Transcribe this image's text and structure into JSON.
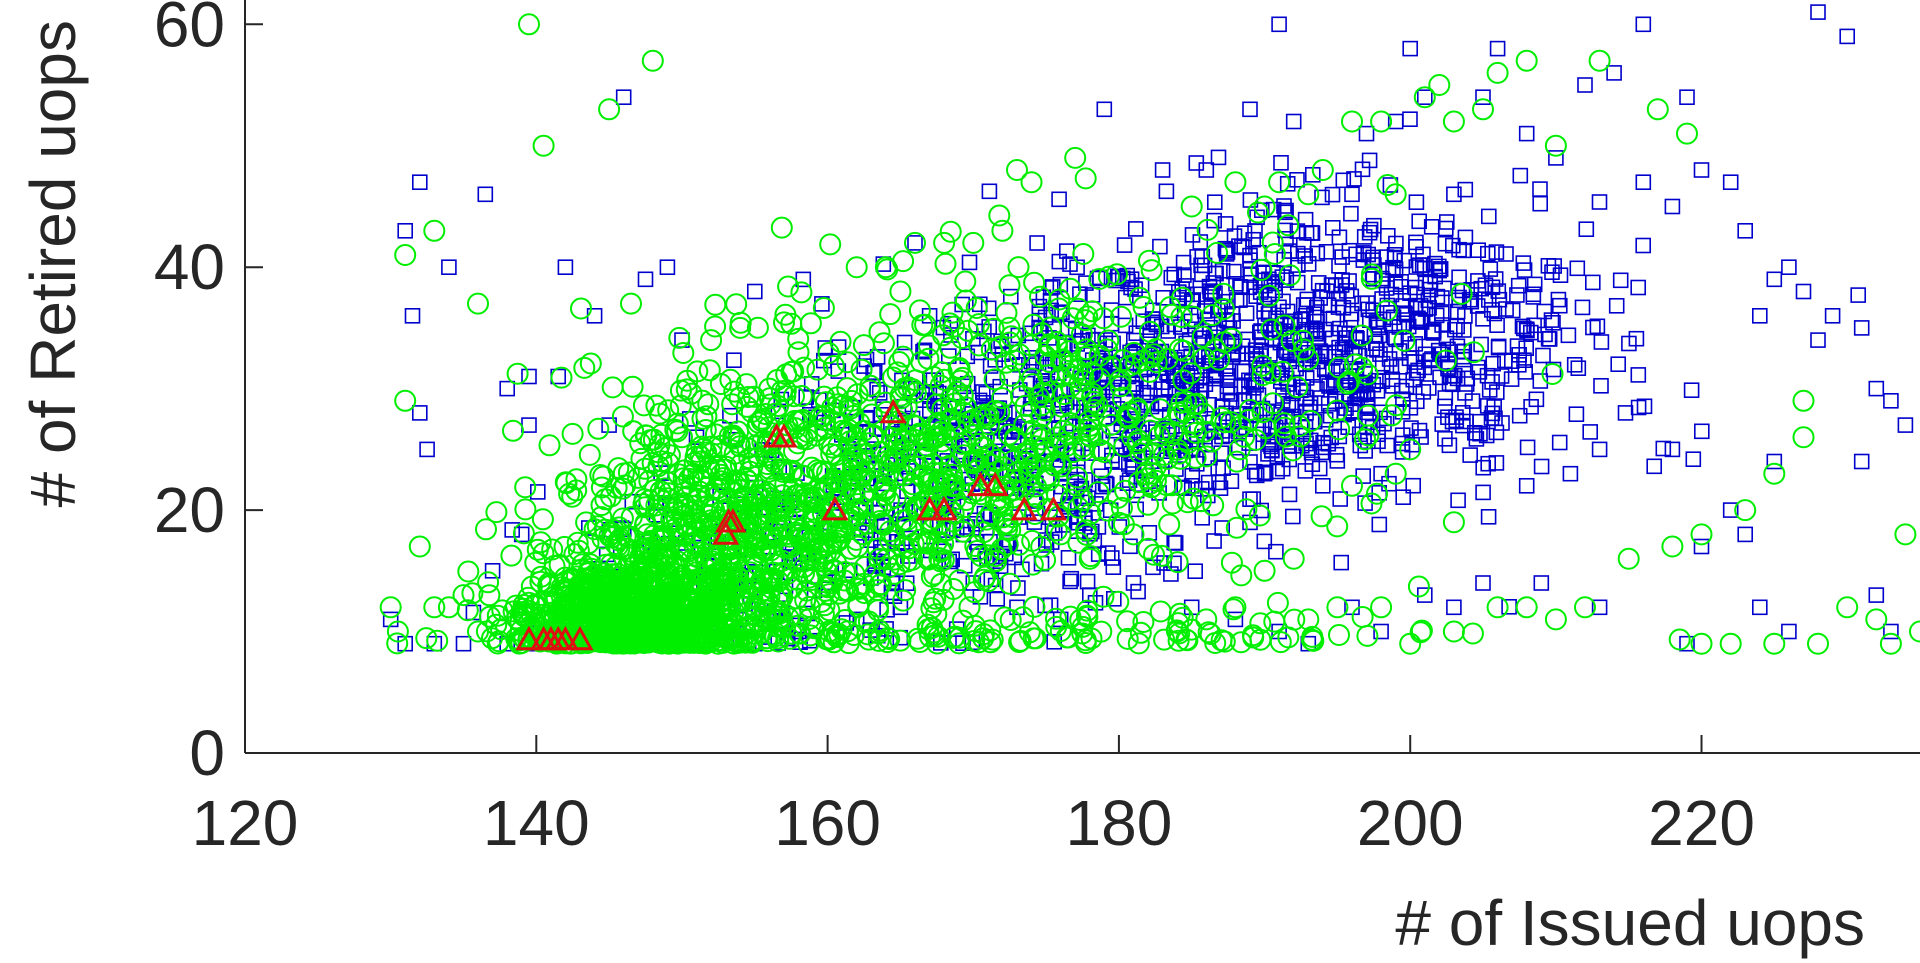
{
  "chart_data": {
    "type": "scatter",
    "title": "",
    "xlabel": "# of Issued uops",
    "ylabel": "# of Retired uops",
    "xlim": [
      120,
      235
    ],
    "ylim": [
      0,
      62
    ],
    "x_ticks": [
      120,
      140,
      160,
      180,
      200,
      220
    ],
    "y_ticks": [
      0,
      20,
      40,
      60
    ],
    "grid": false,
    "series": [
      {
        "marker": "square",
        "color": "#0000cc",
        "clusters": [
          {
            "cx": 196,
            "cy": 34,
            "sx": 9,
            "sy": 6,
            "n": 700
          },
          {
            "cx": 182,
            "cy": 30,
            "sx": 8,
            "sy": 6,
            "n": 450
          },
          {
            "cx": 168,
            "cy": 24,
            "sx": 7,
            "sy": 5,
            "n": 250
          },
          {
            "cx": 160,
            "cy": 15,
            "sx": 10,
            "sy": 4,
            "n": 150
          }
        ],
        "points": [
          [
            131,
            43
          ],
          [
            132,
            47
          ],
          [
            131.5,
            36
          ],
          [
            132,
            28
          ],
          [
            132.5,
            25
          ],
          [
            136.5,
            46
          ],
          [
            134,
            40
          ],
          [
            138,
            30
          ],
          [
            139.5,
            31
          ],
          [
            139.5,
            27
          ],
          [
            141.5,
            31
          ],
          [
            142,
            40
          ],
          [
            144,
            36
          ],
          [
            145,
            27
          ],
          [
            146,
            54
          ],
          [
            147.5,
            39
          ],
          [
            149,
            40
          ],
          [
            150,
            34
          ],
          [
            151,
            26
          ],
          [
            155,
            38
          ],
          [
            166,
            42
          ],
          [
            167,
            36
          ],
          [
            179,
            53
          ],
          [
            183,
            48
          ],
          [
            186,
            48
          ],
          [
            189,
            53
          ],
          [
            191,
            60
          ],
          [
            192,
            52
          ],
          [
            196,
            46
          ],
          [
            197,
            51
          ],
          [
            199,
            52
          ],
          [
            200,
            58
          ],
          [
            201,
            54
          ],
          [
            203,
            46
          ],
          [
            205,
            54
          ],
          [
            206,
            58
          ],
          [
            208,
            51
          ],
          [
            210,
            49
          ],
          [
            212,
            55
          ],
          [
            214,
            56
          ],
          [
            216,
            47
          ],
          [
            218,
            45
          ],
          [
            219,
            54
          ],
          [
            220,
            48
          ],
          [
            222,
            47
          ],
          [
            223,
            43
          ],
          [
            224,
            36
          ],
          [
            225,
            39
          ],
          [
            226,
            40
          ],
          [
            227,
            38
          ],
          [
            228,
            34
          ],
          [
            229,
            36
          ],
          [
            231,
            35
          ],
          [
            232,
            30
          ],
          [
            233,
            29
          ],
          [
            234,
            27
          ],
          [
            230,
            59
          ],
          [
            228,
            61
          ],
          [
            216,
            60
          ],
          [
            231,
            24
          ],
          [
            225,
            24
          ],
          [
            223,
            18
          ],
          [
            220,
            17
          ],
          [
            222,
            20
          ],
          [
            219,
            9
          ],
          [
            213,
            12
          ],
          [
            209,
            14
          ],
          [
            205,
            14
          ],
          [
            203,
            12
          ],
          [
            201,
            13
          ],
          [
            198,
            10
          ],
          [
            196,
            12
          ],
          [
            193,
            9
          ],
          [
            191,
            10
          ],
          [
            188,
            11
          ],
          [
            185,
            12
          ],
          [
            181,
            14
          ],
          [
            178,
            13
          ],
          [
            176,
            11
          ],
          [
            173,
            12
          ],
          [
            170,
            14
          ],
          [
            165,
            12
          ],
          [
            162,
            11
          ],
          [
            158,
            10
          ],
          [
            155,
            9
          ],
          [
            152,
            10
          ],
          [
            149,
            9
          ],
          [
            146,
            9
          ],
          [
            143,
            9
          ],
          [
            140,
            9
          ],
          [
            138,
            9
          ],
          [
            135,
            9
          ],
          [
            133,
            9
          ],
          [
            131,
            9
          ],
          [
            130,
            11
          ],
          [
            137,
            15
          ],
          [
            139,
            18
          ],
          [
            185,
            22
          ],
          [
            190,
            23
          ],
          [
            194,
            22
          ],
          [
            198,
            23
          ],
          [
            208,
            22
          ],
          [
            211,
            23
          ],
          [
            213,
            25
          ],
          [
            218,
            25
          ],
          [
            224,
            12
          ],
          [
            233,
            10
          ],
          [
            226,
            10
          ],
          [
            232,
            13
          ]
        ]
      },
      {
        "marker": "circle",
        "color": "#00ee00",
        "clusters": [
          {
            "cx": 147,
            "cy": 11,
            "sx": 4,
            "sy": 2.2,
            "n": 900
          },
          {
            "cx": 153,
            "cy": 18,
            "sx": 6,
            "sy": 5,
            "n": 600
          },
          {
            "cx": 165,
            "cy": 24,
            "sx": 9,
            "sy": 6,
            "n": 550
          },
          {
            "cx": 180,
            "cy": 30,
            "sx": 10,
            "sy": 6,
            "n": 300
          },
          {
            "cx": 170,
            "cy": 9.5,
            "sx": 15,
            "sy": 1.2,
            "n": 140
          }
        ],
        "points": [
          [
            139.5,
            60
          ],
          [
            140.5,
            50
          ],
          [
            145,
            53
          ],
          [
            148,
            57
          ],
          [
            146.5,
            37
          ],
          [
            136,
            37
          ],
          [
            133,
            43
          ],
          [
            131,
            41
          ],
          [
            131,
            29
          ],
          [
            132,
            17
          ],
          [
            133,
            12
          ],
          [
            134,
            12
          ],
          [
            135,
            13
          ],
          [
            136,
            10
          ],
          [
            130,
            12
          ],
          [
            130.5,
            10
          ],
          [
            150,
            26
          ],
          [
            152,
            34
          ],
          [
            154,
            35
          ],
          [
            156,
            30
          ],
          [
            158,
            33
          ],
          [
            162,
            40
          ],
          [
            164,
            40
          ],
          [
            165,
            38
          ],
          [
            166,
            42
          ],
          [
            168,
            42
          ],
          [
            170,
            42
          ],
          [
            172,
            43
          ],
          [
            173,
            48
          ],
          [
            174,
            47
          ],
          [
            177,
            49
          ],
          [
            185,
            45
          ],
          [
            188,
            47
          ],
          [
            190,
            45
          ],
          [
            191,
            47
          ],
          [
            193,
            46
          ],
          [
            194,
            48
          ],
          [
            196,
            52
          ],
          [
            198,
            52
          ],
          [
            199,
            46
          ],
          [
            201,
            54
          ],
          [
            202,
            55
          ],
          [
            203,
            52
          ],
          [
            205,
            53
          ],
          [
            206,
            56
          ],
          [
            208,
            57
          ],
          [
            210,
            50
          ],
          [
            213,
            57
          ],
          [
            217,
            53
          ],
          [
            219,
            51
          ],
          [
            227,
            29
          ],
          [
            227,
            26
          ],
          [
            225,
            23
          ],
          [
            223,
            20
          ],
          [
            220,
            18
          ],
          [
            218,
            17
          ],
          [
            215,
            16
          ],
          [
            212,
            12
          ],
          [
            210,
            11
          ],
          [
            208,
            12
          ],
          [
            206,
            12
          ],
          [
            203,
            10
          ],
          [
            200,
            9
          ],
          [
            198,
            12
          ],
          [
            195,
            12
          ],
          [
            193,
            11
          ],
          [
            190,
            15
          ],
          [
            188,
            12
          ],
          [
            186,
            11
          ],
          [
            184,
            10
          ],
          [
            181,
            18
          ],
          [
            178,
            16
          ],
          [
            176,
            18
          ],
          [
            230,
            12
          ],
          [
            232,
            11
          ],
          [
            233,
            9
          ],
          [
            235,
            10
          ],
          [
            234,
            18
          ],
          [
            228,
            9
          ],
          [
            225,
            9
          ],
          [
            222,
            9
          ],
          [
            220,
            9
          ],
          [
            196,
            22
          ],
          [
            192,
            16
          ],
          [
            199,
            23
          ],
          [
            200,
            25
          ],
          [
            203,
            19
          ]
        ]
      },
      {
        "marker": "triangle",
        "color": "#dd1111",
        "clusters": [],
        "points": [
          [
            139.5,
            9.3
          ],
          [
            140.5,
            9.3
          ],
          [
            141,
            9.3
          ],
          [
            141.5,
            9.3
          ],
          [
            142,
            9.3
          ],
          [
            143,
            9.3
          ],
          [
            153,
            18
          ],
          [
            153.2,
            19
          ],
          [
            153.5,
            19
          ],
          [
            156.5,
            26
          ],
          [
            157,
            26
          ],
          [
            160.5,
            20
          ],
          [
            164.5,
            28
          ],
          [
            167,
            20
          ],
          [
            168,
            20
          ],
          [
            170.5,
            22
          ],
          [
            171.5,
            22
          ],
          [
            173.5,
            20
          ],
          [
            175.5,
            20
          ]
        ]
      }
    ]
  }
}
